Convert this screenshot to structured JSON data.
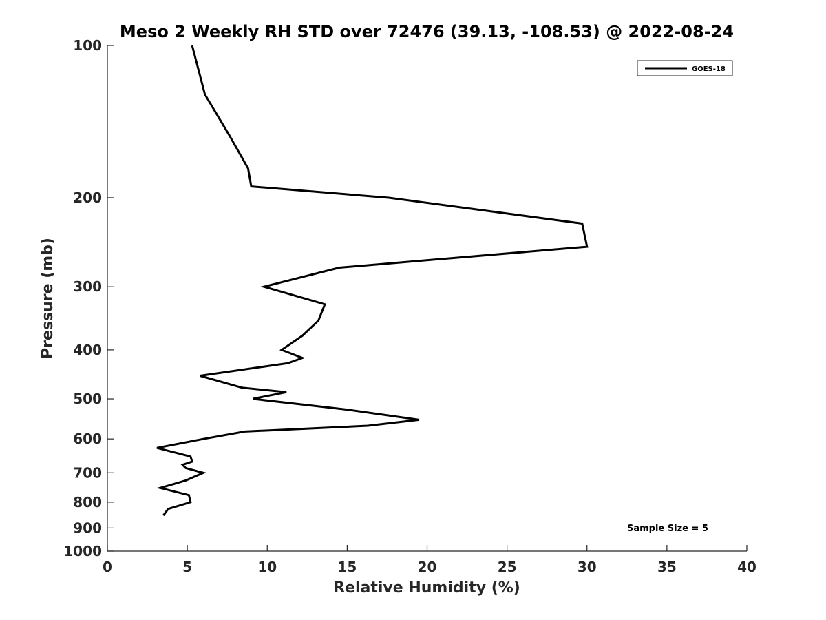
{
  "chart_data": {
    "type": "line",
    "title": "Meso 2 Weekly RH STD over 72476 (39.13, -108.53) @ 2022-08-24",
    "xlabel": "Relative Humidity (%)",
    "ylabel": "Pressure (mb)",
    "xlim": [
      0,
      40
    ],
    "ylim": [
      1000,
      100
    ],
    "y_scale": "log",
    "x_ticks": [
      0,
      5,
      10,
      15,
      20,
      25,
      30,
      35,
      40
    ],
    "x_tick_labels": [
      "0",
      "5",
      "10",
      "15",
      "20",
      "25",
      "30",
      "35",
      "40"
    ],
    "y_ticks": [
      100,
      200,
      300,
      400,
      500,
      600,
      700,
      800,
      900,
      1000
    ],
    "y_tick_labels": [
      "100",
      "200",
      "300",
      "400",
      "500",
      "600",
      "700",
      "800",
      "900",
      "1000"
    ],
    "grid": false,
    "legend": {
      "position": "top-right",
      "entries": [
        "GOES-18"
      ]
    },
    "annotation": "Sample Size = 5",
    "series": [
      {
        "name": "GOES-18",
        "color": "#000000",
        "points": [
          [
            5.3,
            100
          ],
          [
            6.1,
            125
          ],
          [
            7.6,
            150
          ],
          [
            8.8,
            175
          ],
          [
            9.0,
            190
          ],
          [
            17.6,
            200
          ],
          [
            29.7,
            225
          ],
          [
            30.0,
            250
          ],
          [
            14.5,
            275
          ],
          [
            9.8,
            300
          ],
          [
            13.6,
            325
          ],
          [
            13.2,
            350
          ],
          [
            12.2,
            375
          ],
          [
            10.9,
            400
          ],
          [
            12.2,
            415
          ],
          [
            11.3,
            425
          ],
          [
            5.8,
            450
          ],
          [
            8.4,
            475
          ],
          [
            11.2,
            485
          ],
          [
            9.1,
            500
          ],
          [
            15.0,
            525
          ],
          [
            19.5,
            550
          ],
          [
            16.3,
            565
          ],
          [
            8.6,
            580
          ],
          [
            6.0,
            600
          ],
          [
            3.1,
            625
          ],
          [
            5.2,
            650
          ],
          [
            5.3,
            665
          ],
          [
            4.7,
            675
          ],
          [
            4.9,
            685
          ],
          [
            6.0,
            700
          ],
          [
            4.9,
            725
          ],
          [
            3.3,
            750
          ],
          [
            5.1,
            775
          ],
          [
            5.2,
            800
          ],
          [
            3.8,
            825
          ],
          [
            3.5,
            850
          ]
        ]
      }
    ]
  }
}
